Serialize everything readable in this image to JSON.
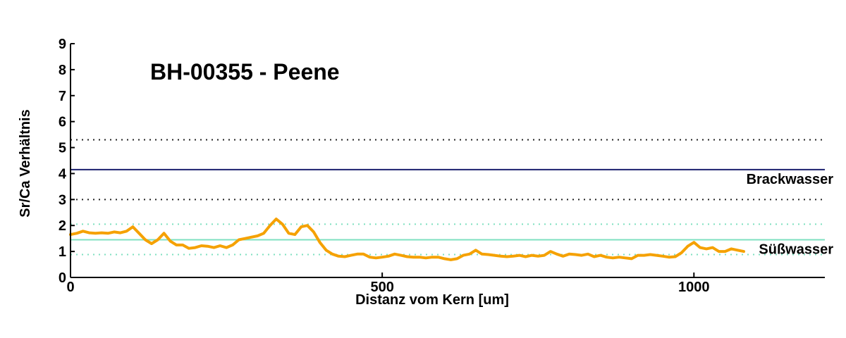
{
  "chart_data": {
    "type": "line",
    "title": "BH-00355 - Peene",
    "xlabel": "Distanz vom Kern [um]",
    "ylabel": "Sr/Ca Verhältnis",
    "xlim": [
      0,
      1210
    ],
    "ylim": [
      0,
      9
    ],
    "xticks": [
      0,
      500,
      1000
    ],
    "yticks": [
      0,
      1,
      2,
      3,
      4,
      5,
      6,
      7,
      8,
      9
    ],
    "grid": false,
    "series": [
      {
        "color": "#f5a100",
        "x": [
          0,
          10,
          20,
          30,
          40,
          50,
          60,
          70,
          80,
          90,
          100,
          110,
          120,
          130,
          140,
          150,
          160,
          170,
          180,
          190,
          200,
          210,
          220,
          230,
          240,
          250,
          260,
          270,
          280,
          290,
          300,
          310,
          320,
          330,
          340,
          350,
          360,
          370,
          380,
          390,
          400,
          410,
          420,
          430,
          440,
          450,
          460,
          470,
          480,
          490,
          500,
          510,
          520,
          530,
          540,
          550,
          560,
          570,
          580,
          590,
          600,
          610,
          620,
          630,
          640,
          650,
          660,
          670,
          680,
          690,
          700,
          710,
          720,
          730,
          740,
          750,
          760,
          770,
          780,
          790,
          800,
          810,
          820,
          830,
          840,
          850,
          860,
          870,
          880,
          890,
          900,
          910,
          920,
          930,
          940,
          950,
          960,
          970,
          980,
          990,
          1000,
          1010,
          1020,
          1030,
          1040,
          1050,
          1060,
          1070,
          1080
        ],
        "y": [
          1.65,
          1.7,
          1.78,
          1.72,
          1.7,
          1.72,
          1.7,
          1.75,
          1.72,
          1.78,
          1.95,
          1.7,
          1.45,
          1.3,
          1.45,
          1.7,
          1.4,
          1.25,
          1.25,
          1.12,
          1.15,
          1.22,
          1.2,
          1.15,
          1.22,
          1.15,
          1.25,
          1.45,
          1.5,
          1.55,
          1.6,
          1.7,
          2.0,
          2.25,
          2.05,
          1.7,
          1.65,
          1.95,
          2.0,
          1.75,
          1.35,
          1.05,
          0.9,
          0.82,
          0.8,
          0.85,
          0.9,
          0.9,
          0.78,
          0.75,
          0.78,
          0.82,
          0.9,
          0.85,
          0.8,
          0.78,
          0.78,
          0.75,
          0.78,
          0.78,
          0.72,
          0.68,
          0.72,
          0.85,
          0.9,
          1.05,
          0.9,
          0.88,
          0.85,
          0.82,
          0.8,
          0.82,
          0.85,
          0.8,
          0.85,
          0.82,
          0.85,
          1.0,
          0.9,
          0.82,
          0.9,
          0.88,
          0.85,
          0.9,
          0.8,
          0.85,
          0.78,
          0.75,
          0.78,
          0.75,
          0.72,
          0.85,
          0.85,
          0.88,
          0.85,
          0.82,
          0.78,
          0.8,
          0.95,
          1.2,
          1.35,
          1.15,
          1.1,
          1.15,
          1.0,
          1.0,
          1.1,
          1.05,
          1.0
        ]
      }
    ],
    "reference_lines": [
      {
        "label": "Brackwasser",
        "y": 4.15,
        "style": "solid",
        "color": "#1a1f6e"
      },
      {
        "y": 5.3,
        "style": "dotted",
        "color": "#222222"
      },
      {
        "y": 3.0,
        "style": "dotted",
        "color": "#222222"
      },
      {
        "label": "Süßwasser",
        "y": 1.45,
        "style": "solid",
        "color": "#7fe0c0"
      },
      {
        "y": 2.05,
        "style": "dotted",
        "color": "#7fe0c0"
      },
      {
        "y": 0.88,
        "style": "dotted",
        "color": "#7fe0c0"
      }
    ]
  }
}
